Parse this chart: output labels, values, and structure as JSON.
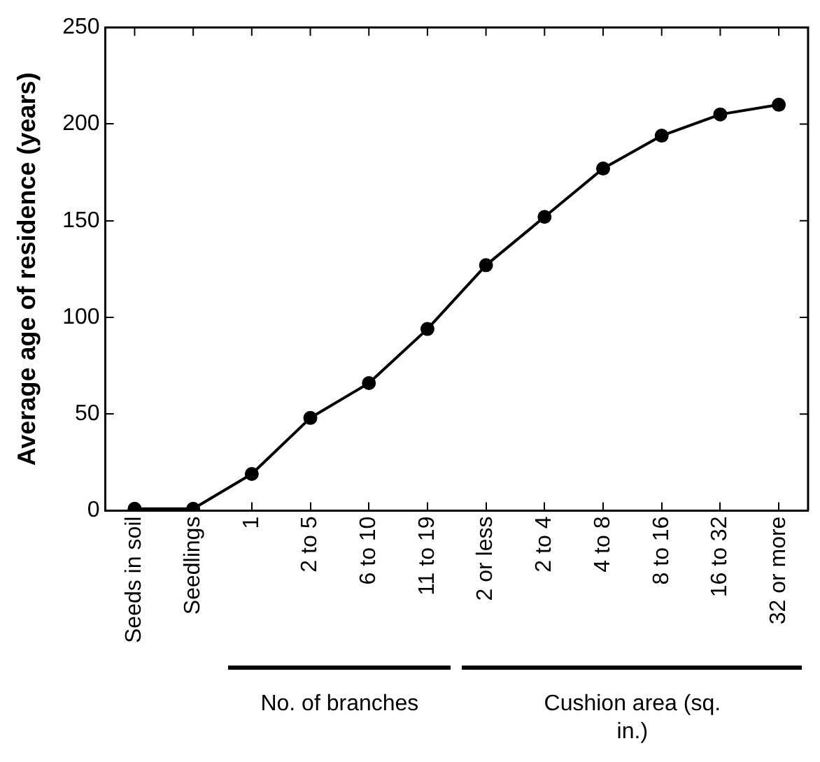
{
  "chart_data": {
    "type": "line",
    "ylabel": "Average age of residence (years)",
    "categories": [
      "Seeds in soil",
      "Seedlings",
      "1",
      "2 to 5",
      "6 to 10",
      "11 to 19",
      "2 or less",
      "2 to 4",
      "4 to 8",
      "8 to 16",
      "16 to 32",
      "32 or more"
    ],
    "series": [
      {
        "color": "#000000",
        "values": [
          1,
          1,
          19,
          48,
          66,
          94,
          127,
          152,
          177,
          194,
          205,
          210
        ]
      }
    ],
    "ylim": [
      0,
      250
    ],
    "yticks": [
      0,
      50,
      100,
      150,
      200,
      250
    ],
    "grid": false,
    "legend": false,
    "marker": "circle",
    "line_style": "solid",
    "annotations": [
      "No. of branches",
      "Cushion area (sq. in.)"
    ]
  }
}
